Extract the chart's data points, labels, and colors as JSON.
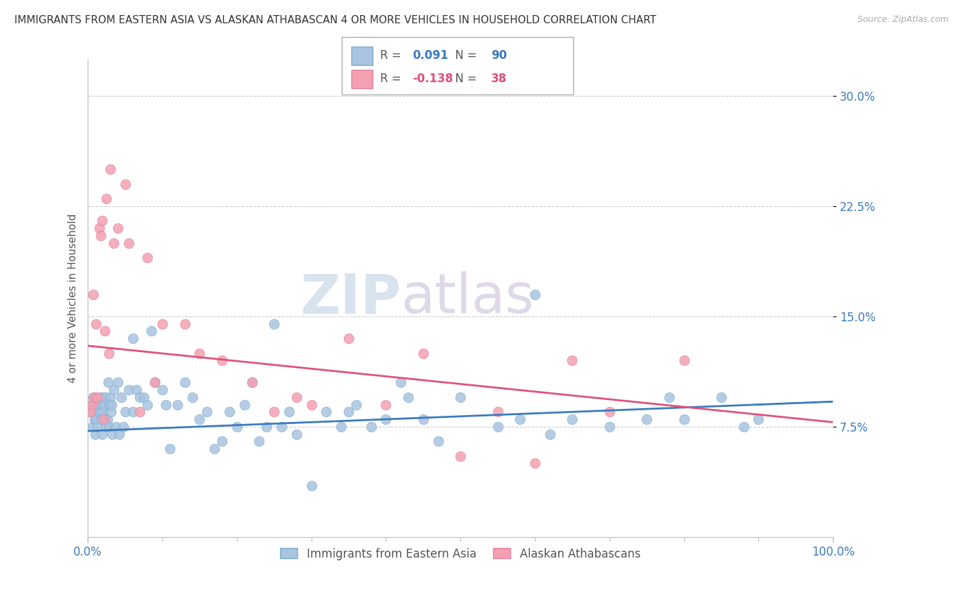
{
  "title": "IMMIGRANTS FROM EASTERN ASIA VS ALASKAN ATHABASCAN 4 OR MORE VEHICLES IN HOUSEHOLD CORRELATION CHART",
  "source": "Source: ZipAtlas.com",
  "ylabel": "4 or more Vehicles in Household",
  "legend_blue_r_val": "0.091",
  "legend_blue_n_val": "90",
  "legend_pink_r_val": "-0.138",
  "legend_pink_n_val": "38",
  "legend_label_blue": "Immigrants from Eastern Asia",
  "legend_label_pink": "Alaskan Athabascans",
  "xlim": [
    0.0,
    100.0
  ],
  "ylim": [
    0.0,
    32.5
  ],
  "yticks": [
    7.5,
    15.0,
    22.5,
    30.0
  ],
  "color_blue": "#a8c4e0",
  "color_pink": "#f4a0b0",
  "line_color_blue": "#3a7abf",
  "line_color_pink": "#e0507a",
  "watermark_zip": "ZIP",
  "watermark_atlas": "atlas",
  "title_fontsize": 11,
  "blue_x": [
    0.3,
    0.5,
    0.6,
    0.7,
    0.8,
    0.9,
    1.0,
    1.1,
    1.2,
    1.3,
    1.4,
    1.5,
    1.6,
    1.7,
    1.8,
    1.9,
    2.0,
    2.1,
    2.2,
    2.3,
    2.4,
    2.5,
    2.6,
    2.7,
    2.8,
    2.9,
    3.0,
    3.1,
    3.2,
    3.3,
    3.5,
    3.7,
    4.0,
    4.2,
    4.5,
    5.0,
    5.5,
    6.0,
    6.5,
    7.0,
    7.5,
    8.0,
    9.0,
    10.0,
    11.0,
    12.0,
    13.0,
    14.0,
    15.0,
    16.0,
    17.0,
    18.0,
    19.0,
    20.0,
    21.0,
    22.0,
    23.0,
    24.0,
    25.0,
    26.0,
    27.0,
    28.0,
    30.0,
    32.0,
    35.0,
    38.0,
    40.0,
    43.0,
    45.0,
    50.0,
    55.0,
    58.0,
    60.0,
    62.0,
    65.0,
    70.0,
    75.0,
    78.0,
    80.0,
    85.0,
    88.0,
    90.0,
    47.0,
    42.0,
    36.0,
    34.0,
    10.5,
    8.5,
    6.0,
    4.8
  ],
  "blue_y": [
    8.5,
    9.0,
    7.5,
    9.5,
    9.0,
    8.0,
    7.0,
    8.0,
    9.5,
    7.5,
    8.5,
    9.0,
    9.5,
    8.5,
    8.0,
    7.0,
    8.5,
    9.5,
    9.0,
    8.0,
    9.5,
    7.5,
    8.0,
    10.5,
    7.5,
    9.0,
    9.5,
    8.5,
    9.0,
    7.0,
    10.0,
    7.5,
    10.5,
    7.0,
    9.5,
    8.5,
    10.0,
    13.5,
    10.0,
    9.5,
    9.5,
    9.0,
    10.5,
    10.0,
    6.0,
    9.0,
    10.5,
    9.5,
    8.0,
    8.5,
    6.0,
    6.5,
    8.5,
    7.5,
    9.0,
    10.5,
    6.5,
    7.5,
    14.5,
    7.5,
    8.5,
    7.0,
    3.5,
    8.5,
    8.5,
    7.5,
    8.0,
    9.5,
    8.0,
    9.5,
    7.5,
    8.0,
    16.5,
    7.0,
    8.0,
    7.5,
    8.0,
    9.5,
    8.0,
    9.5,
    7.5,
    8.0,
    6.5,
    10.5,
    9.0,
    7.5,
    9.0,
    14.0,
    8.5,
    7.5
  ],
  "pink_x": [
    0.3,
    0.5,
    0.7,
    0.9,
    1.1,
    1.3,
    1.5,
    1.7,
    1.9,
    2.1,
    2.3,
    2.5,
    2.8,
    3.0,
    3.5,
    4.0,
    5.0,
    5.5,
    7.0,
    8.0,
    9.0,
    10.0,
    13.0,
    15.0,
    18.0,
    22.0,
    25.0,
    28.0,
    30.0,
    35.0,
    40.0,
    45.0,
    50.0,
    55.0,
    60.0,
    65.0,
    70.0,
    80.0
  ],
  "pink_y": [
    8.5,
    9.0,
    16.5,
    9.5,
    14.5,
    9.5,
    21.0,
    20.5,
    21.5,
    8.0,
    14.0,
    23.0,
    12.5,
    25.0,
    20.0,
    21.0,
    24.0,
    20.0,
    8.5,
    19.0,
    10.5,
    14.5,
    14.5,
    12.5,
    12.0,
    10.5,
    8.5,
    9.5,
    9.0,
    13.5,
    9.0,
    12.5,
    5.5,
    8.5,
    5.0,
    12.0,
    8.5,
    12.0
  ],
  "blue_trend_x0": 0,
  "blue_trend_x1": 100,
  "blue_trend_y0": 7.2,
  "blue_trend_y1": 9.2,
  "pink_trend_x0": 0,
  "pink_trend_x1": 100,
  "pink_trend_y0": 13.0,
  "pink_trend_y1": 7.8
}
